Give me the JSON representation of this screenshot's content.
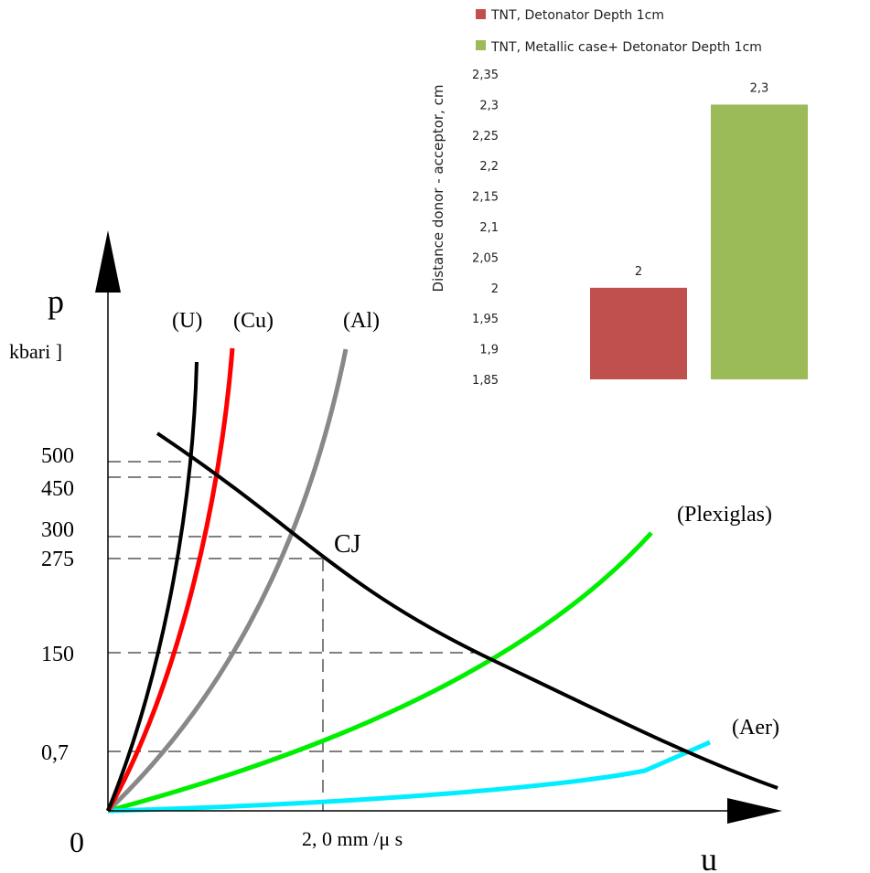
{
  "chart_data": [
    {
      "type": "line",
      "title": "",
      "origin_label": "0",
      "xlabel": "u",
      "ylabel": "p",
      "yunit": "kbari ]",
      "x_tick_label": "2, 0 mm /μ s",
      "y_ticks": [
        "500",
        "450",
        "300",
        "275",
        "150",
        "0,7"
      ],
      "cj_label": "CJ",
      "series": [
        {
          "name": "(U)",
          "color": "#000000",
          "x": [
            0,
            0.2,
            0.4,
            0.6,
            0.8,
            0.95
          ],
          "y": [
            0,
            90,
            190,
            320,
            480,
            620
          ]
        },
        {
          "name": "(Cu)",
          "color": "#ff0000",
          "x": [
            0,
            0.3,
            0.6,
            0.8,
            1.0,
            1.15
          ],
          "y": [
            0,
            95,
            220,
            340,
            480,
            650
          ]
        },
        {
          "name": "(Al)",
          "color": "#888888",
          "x": [
            0,
            0.5,
            1.0,
            1.5,
            1.9,
            2.2
          ],
          "y": [
            0,
            80,
            200,
            350,
            500,
            650
          ]
        },
        {
          "name": "(Plexiglas)",
          "color": "#00ee00",
          "x": [
            0,
            1.0,
            2.0,
            3.0,
            4.0,
            5.1
          ],
          "y": [
            0,
            45,
            110,
            190,
            280,
            390
          ]
        },
        {
          "name": "(Aer)",
          "color": "#00eeff",
          "x": [
            0,
            1.5,
            3.0,
            4.5,
            5.2,
            5.6
          ],
          "y": [
            0,
            10,
            20,
            35,
            50,
            75
          ]
        },
        {
          "name": "",
          "color": "#000000",
          "x": [
            0.45,
            1.0,
            2.0,
            3.5,
            5.5,
            6.3
          ],
          "y": [
            540,
            470,
            275,
            150,
            40,
            10
          ]
        }
      ]
    },
    {
      "type": "bar",
      "ylabel": "Distance donor - acceptor, cm",
      "ylim": [
        1.85,
        2.35
      ],
      "yticks": [
        "2,35",
        "2,3",
        "2,25",
        "2,2",
        "2,15",
        "2,1",
        "2,05",
        "2",
        "1,95",
        "1,9",
        "1,85"
      ],
      "series": [
        {
          "name": "TNT, Detonator Depth 1cm",
          "value": 2.0,
          "label": "2",
          "color": "#c0504d"
        },
        {
          "name": "TNT, Metallic case+ Detonator Depth 1cm",
          "value": 2.3,
          "label": "2,3",
          "color": "#9bbb59"
        }
      ]
    }
  ]
}
